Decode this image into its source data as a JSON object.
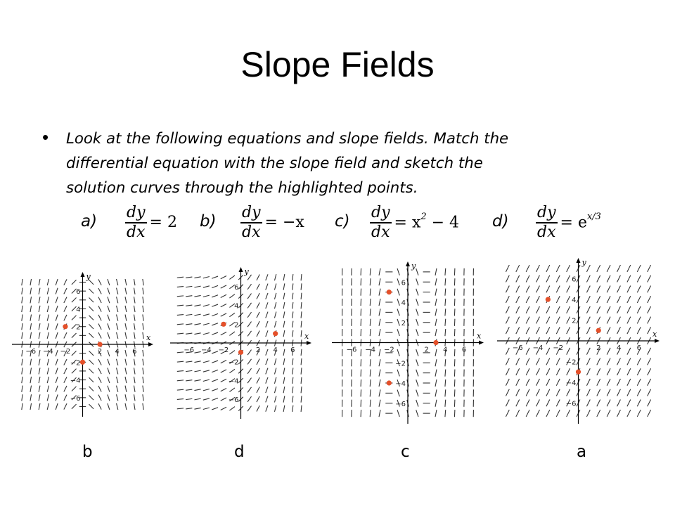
{
  "title": "Slope Fields",
  "bullet": {
    "line1": "Look at the following equations and slope fields.  Match the",
    "line2": "differential equation with the slope field and sketch the",
    "line3": "solution curves through the highlighted points."
  },
  "equations": [
    {
      "label": "a)",
      "numerator": "dy",
      "denominator": "dx",
      "rhs": "= 2",
      "rhs_exp": ""
    },
    {
      "label": "b)",
      "numerator": "dy",
      "denominator": "dx",
      "rhs": "= −x",
      "rhs_exp": ""
    },
    {
      "label": "c)",
      "numerator": "dy",
      "denominator": "dx",
      "rhs": "= x",
      "rhs_exp": "2",
      "rhs_tail": " − 4"
    },
    {
      "label": "d)",
      "numerator": "dy",
      "denominator": "dx",
      "rhs": "= e",
      "rhs_exp": "x/3"
    }
  ],
  "answers": [
    "b",
    "d",
    "c",
    "a"
  ],
  "axis_labels": {
    "x": "x",
    "y": "y"
  },
  "tick_labels": [
    "−6",
    "−4",
    "−2",
    "2",
    "4",
    "6"
  ],
  "fields": [
    {
      "slope": "-x",
      "points": [
        [
          -2,
          2
        ],
        [
          2,
          0
        ],
        [
          0,
          -2
        ]
      ],
      "background": "#ffffff"
    },
    {
      "slope": "exp",
      "points": [
        [
          -2,
          2
        ],
        [
          4,
          1
        ],
        [
          0,
          -1
        ]
      ],
      "background": "#ffffff"
    },
    {
      "slope": "x2-4",
      "points": [
        [
          -2,
          5
        ],
        [
          3,
          0
        ],
        [
          -2,
          -4
        ]
      ],
      "background": "#ffffff"
    },
    {
      "slope": "2",
      "points": [
        [
          -3,
          4
        ],
        [
          2,
          1
        ],
        [
          0,
          -3
        ]
      ],
      "background": "#ffffff"
    }
  ],
  "colors": {
    "point": "#e4502a",
    "stroke": "#333333"
  }
}
